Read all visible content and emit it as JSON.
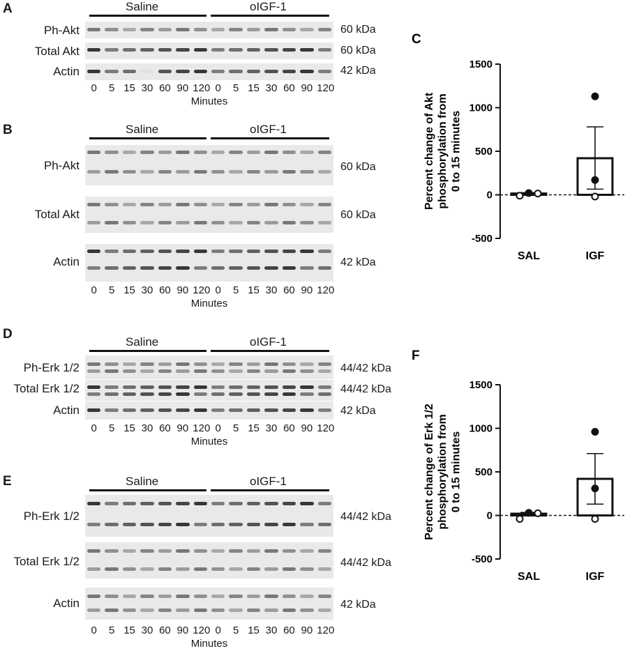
{
  "groups": [
    "Saline",
    "oIGF-1"
  ],
  "times": [
    "0",
    "5",
    "15",
    "30",
    "60",
    "90",
    "120",
    "0",
    "5",
    "15",
    "30",
    "60",
    "90",
    "120"
  ],
  "minutes": "Minutes",
  "panels": {
    "A": {
      "letter": "A",
      "rows": [
        "Ph-Akt",
        "Total Akt",
        "Actin"
      ],
      "kda": [
        "60 kDa",
        "60 kDa",
        "42 kDa"
      ]
    },
    "B": {
      "letter": "B",
      "rows": [
        "Ph-Akt",
        "Total Akt",
        "Actin"
      ],
      "kda": [
        "60 kDa",
        "60 kDa",
        "42 kDa"
      ]
    },
    "D": {
      "letter": "D",
      "rows": [
        "Ph-Erk 1/2",
        "Total Erk 1/2",
        "Actin"
      ],
      "kda": [
        "44/42 kDa",
        "44/42 kDa",
        "42 kDa"
      ]
    },
    "E": {
      "letter": "E",
      "rows": [
        "Ph-Erk 1/2",
        "Total Erk 1/2",
        "Actin"
      ],
      "kda": [
        "44/42 kDa",
        "44/42 kDa",
        "42 kDa"
      ]
    }
  },
  "chart_data": [
    {
      "panel": "C",
      "type": "bar",
      "ylabel": "Percent change of Akt phosphorylation from 0 to 15 minutes",
      "categories": [
        "SAL",
        "IGF"
      ],
      "values": [
        15,
        420
      ],
      "error": [
        [
          5,
          25
        ],
        [
          65,
          780
        ]
      ],
      "points": [
        [
          -10,
          20,
          15
        ],
        [
          1130,
          170,
          -20
        ]
      ],
      "ylim": [
        -500,
        1500
      ],
      "yticks": [
        "1500",
        "1000",
        "500",
        "0",
        "-500"
      ]
    },
    {
      "panel": "F",
      "type": "bar",
      "ylabel": "Percent change of Erk 1/2 phosphorylation from 0 to 15 minutes",
      "categories": [
        "SAL",
        "IGF"
      ],
      "values": [
        20,
        420
      ],
      "error": [
        [
          5,
          35
        ],
        [
          130,
          710
        ]
      ],
      "points": [
        [
          -40,
          30,
          25
        ],
        [
          960,
          310,
          -40
        ]
      ],
      "ylim": [
        -500,
        1500
      ],
      "yticks": [
        "1500",
        "1000",
        "500",
        "0",
        "-500"
      ]
    }
  ]
}
